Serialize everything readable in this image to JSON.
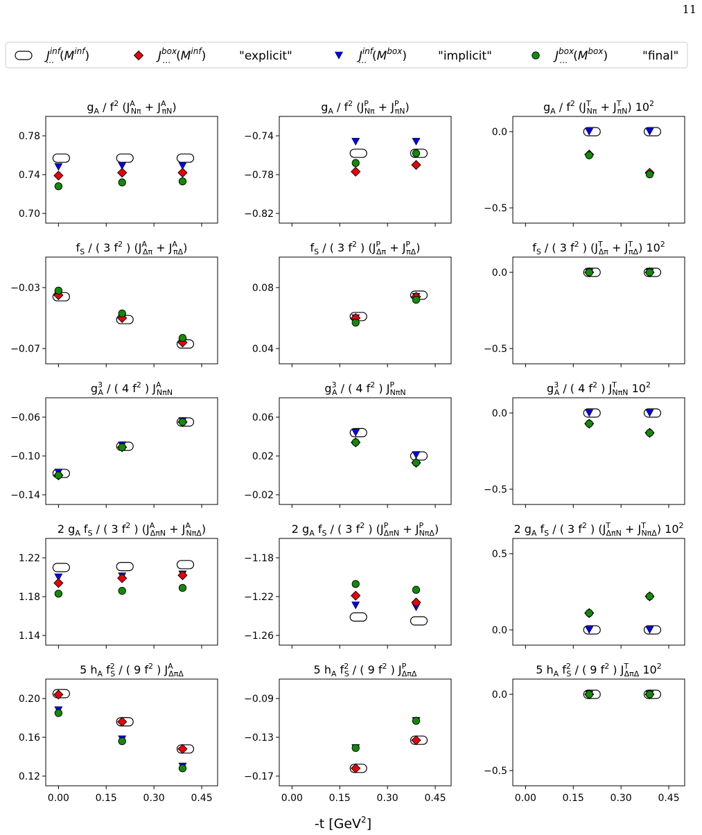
{
  "page_number": "11",
  "xlabel": "-t [GeV²]",
  "legend": [
    {
      "key": "inf_inf",
      "text": "J…inf(Minf)",
      "quote": "",
      "marker": "pill",
      "color": "#ffffff"
    },
    {
      "key": "box_inf",
      "text": "J…box(Minf)",
      "quote": "\"explicit\"",
      "marker": "diamond",
      "color": "#e8000b"
    },
    {
      "key": "inf_box",
      "text": "J…inf(Mbox)",
      "quote": "\"implicit\"",
      "marker": "triangle-down",
      "color": "#0000ee"
    },
    {
      "key": "box_box",
      "text": "J…box(Mbox)",
      "quote": "\"final\"",
      "marker": "circle",
      "color": "#138a07"
    }
  ],
  "chart_data": [
    {
      "type": "scatter",
      "title": "gA / f2 (JA_Nπ + JA_πN)",
      "xlim": [
        -0.04,
        0.5
      ],
      "ylim": [
        0.69,
        0.8
      ],
      "yticks": [
        "0.70",
        "0.74",
        "0.78"
      ],
      "yticks_num": [
        0.7,
        0.74,
        0.78
      ],
      "xticks": [
        "0.00",
        "0.15",
        "0.30",
        "0.45"
      ],
      "x": [
        0,
        0.2,
        0.39
      ],
      "series": [
        {
          "name": "Jinf(Minf)",
          "values": [
            0.757,
            0.757,
            0.757
          ]
        },
        {
          "name": "Jbox(Minf) explicit",
          "values": [
            0.739,
            0.742,
            0.742
          ]
        },
        {
          "name": "Jinf(Mbox) implicit",
          "values": [
            0.748,
            0.749,
            0.749
          ]
        },
        {
          "name": "Jbox(Mbox) final",
          "values": [
            0.728,
            0.732,
            0.733
          ]
        }
      ]
    },
    {
      "type": "scatter",
      "title": "gA / f2 (JP_Nπ + JP_πN)",
      "xlim": [
        -0.04,
        0.5
      ],
      "ylim": [
        -0.83,
        -0.72
      ],
      "yticks": [
        "−0.82",
        "−0.78",
        "−0.74"
      ],
      "yticks_num": [
        -0.82,
        -0.78,
        -0.74
      ],
      "xticks": [
        "0.00",
        "0.15",
        "0.30",
        "0.45"
      ],
      "x": [
        0.2,
        0.39
      ],
      "series": [
        {
          "name": "Jinf(Minf)",
          "values": [
            -0.758,
            -0.758
          ]
        },
        {
          "name": "Jbox(Minf) explicit",
          "values": [
            -0.777,
            -0.77
          ]
        },
        {
          "name": "Jinf(Mbox) implicit",
          "values": [
            -0.746,
            -0.746
          ]
        },
        {
          "name": "Jbox(Mbox) final",
          "values": [
            -0.768,
            -0.758
          ]
        }
      ]
    },
    {
      "type": "scatter",
      "title": "gA / f2 (JT_Nπ + JT_πN) 102",
      "xlim": [
        -0.04,
        0.5
      ],
      "ylim": [
        -0.6,
        0.1
      ],
      "yticks": [
        "−0.5",
        "0.0"
      ],
      "yticks_num": [
        -0.5,
        0.0
      ],
      "xticks": [
        "0.00",
        "0.15",
        "0.30",
        "0.45"
      ],
      "x": [
        0.2,
        0.39
      ],
      "series": [
        {
          "name": "Jinf(Minf)",
          "values": [
            0.0,
            0.0
          ]
        },
        {
          "name": "Jbox(Minf) explicit",
          "values": [
            -0.15,
            -0.27
          ]
        },
        {
          "name": "Jinf(Mbox) implicit",
          "values": [
            0.0,
            0.0
          ]
        },
        {
          "name": "Jbox(Mbox) final",
          "values": [
            -0.155,
            -0.28
          ]
        }
      ]
    },
    {
      "type": "scatter",
      "title": "fS / (3 f2) (JA_Δπ + JA_πΔ)",
      "xlim": [
        -0.04,
        0.5
      ],
      "ylim": [
        -0.08,
        -0.01
      ],
      "yticks": [
        "−0.07",
        "−0.03"
      ],
      "yticks_num": [
        -0.07,
        -0.03
      ],
      "xticks": [
        "0.00",
        "0.15",
        "0.30",
        "0.45"
      ],
      "x": [
        0,
        0.2,
        0.39
      ],
      "series": [
        {
          "name": "Jinf(Minf)",
          "values": [
            -0.036,
            -0.051,
            -0.067
          ]
        },
        {
          "name": "Jbox(Minf) explicit",
          "values": [
            -0.035,
            -0.05,
            -0.066
          ]
        },
        {
          "name": "Jinf(Mbox) implicit",
          "values": [
            -0.035,
            -0.05,
            -0.066
          ]
        },
        {
          "name": "Jbox(Mbox) final",
          "values": [
            -0.032,
            -0.047,
            -0.063
          ]
        }
      ]
    },
    {
      "type": "scatter",
      "title": "fS / (3 f2) (JP_Δπ + JP_πΔ)",
      "xlim": [
        -0.04,
        0.5
      ],
      "ylim": [
        0.03,
        0.1
      ],
      "yticks": [
        "0.04",
        "0.08"
      ],
      "yticks_num": [
        0.04,
        0.08
      ],
      "xticks": [
        "0.00",
        "0.15",
        "0.30",
        "0.45"
      ],
      "x": [
        0.2,
        0.39
      ],
      "series": [
        {
          "name": "Jinf(Minf)",
          "values": [
            0.061,
            0.075
          ]
        },
        {
          "name": "Jbox(Minf) explicit",
          "values": [
            0.06,
            0.074
          ]
        },
        {
          "name": "Jinf(Mbox) implicit",
          "values": [
            0.06,
            0.074
          ]
        },
        {
          "name": "Jbox(Mbox) final",
          "values": [
            0.057,
            0.072
          ]
        }
      ]
    },
    {
      "type": "scatter",
      "title": "fS / (3 f2) (JT_Δπ + JT_πΔ) 102",
      "xlim": [
        -0.04,
        0.5
      ],
      "ylim": [
        -0.6,
        0.1
      ],
      "yticks": [
        "−0.5",
        "0.0"
      ],
      "yticks_num": [
        -0.5,
        0.0
      ],
      "xticks": [
        "0.00",
        "0.15",
        "0.30",
        "0.45"
      ],
      "x": [
        0.2,
        0.39
      ],
      "series": [
        {
          "name": "Jinf(Minf)",
          "values": [
            0.0,
            0.0
          ]
        },
        {
          "name": "Jbox(Minf) explicit",
          "values": [
            0.0,
            0.0
          ]
        },
        {
          "name": "Jinf(Mbox) implicit",
          "values": [
            0.0,
            0.0
          ]
        },
        {
          "name": "Jbox(Mbox) final",
          "values": [
            0.0,
            0.0
          ]
        }
      ]
    },
    {
      "type": "scatter",
      "title": "gA3 / (4 f2) JA_NπN",
      "xlim": [
        -0.04,
        0.5
      ],
      "ylim": [
        -0.15,
        -0.04
      ],
      "yticks": [
        "−0.14",
        "−0.10",
        "−0.06"
      ],
      "yticks_num": [
        -0.14,
        -0.1,
        -0.06
      ],
      "xticks": [
        "0.00",
        "0.15",
        "0.30",
        "0.45"
      ],
      "x": [
        0,
        0.2,
        0.39
      ],
      "series": [
        {
          "name": "Jinf(Minf)",
          "values": [
            -0.118,
            -0.09,
            -0.065
          ]
        },
        {
          "name": "Jbox(Minf) explicit",
          "values": [
            -0.12,
            -0.091,
            -0.065
          ]
        },
        {
          "name": "Jinf(Mbox) implicit",
          "values": [
            -0.117,
            -0.089,
            -0.064
          ]
        },
        {
          "name": "Jbox(Mbox) final",
          "values": [
            -0.12,
            -0.091,
            -0.065
          ]
        }
      ]
    },
    {
      "type": "scatter",
      "title": "gA3 / (4 f2) JP_NπN",
      "xlim": [
        -0.04,
        0.5
      ],
      "ylim": [
        -0.03,
        0.08
      ],
      "yticks": [
        "−0.02",
        "0.02",
        "0.06"
      ],
      "yticks_num": [
        -0.02,
        0.02,
        0.06
      ],
      "xticks": [
        "0.00",
        "0.15",
        "0.30",
        "0.45"
      ],
      "x": [
        0.2,
        0.39
      ],
      "series": [
        {
          "name": "Jinf(Minf)",
          "values": [
            0.044,
            0.02
          ]
        },
        {
          "name": "Jbox(Minf) explicit",
          "values": [
            0.034,
            0.013
          ]
        },
        {
          "name": "Jinf(Mbox) implicit",
          "values": [
            0.044,
            0.021
          ]
        },
        {
          "name": "Jbox(Mbox) final",
          "values": [
            0.034,
            0.013
          ]
        }
      ]
    },
    {
      "type": "scatter",
      "title": "gA3 / (4 f2) JT_NπN 102",
      "xlim": [
        -0.04,
        0.5
      ],
      "ylim": [
        -0.6,
        0.1
      ],
      "yticks": [
        "−0.5",
        "0.0"
      ],
      "yticks_num": [
        -0.5,
        0.0
      ],
      "xticks": [
        "0.00",
        "0.15",
        "0.30",
        "0.45"
      ],
      "x": [
        0.2,
        0.39
      ],
      "series": [
        {
          "name": "Jinf(Minf)",
          "values": [
            0.0,
            0.0
          ]
        },
        {
          "name": "Jbox(Minf) explicit",
          "values": [
            -0.07,
            -0.13
          ]
        },
        {
          "name": "Jinf(Mbox) implicit",
          "values": [
            0.0,
            0.0
          ]
        },
        {
          "name": "Jbox(Mbox) final",
          "values": [
            -0.07,
            -0.13
          ]
        }
      ]
    },
    {
      "type": "scatter",
      "title": "2 gA fS / (3 f2) (JA_ΔπN + JA_NπΔ)",
      "xlim": [
        -0.04,
        0.5
      ],
      "ylim": [
        1.13,
        1.24
      ],
      "yticks": [
        "1.14",
        "1.18",
        "1.22"
      ],
      "yticks_num": [
        1.14,
        1.18,
        1.22
      ],
      "xticks": [
        "0.00",
        "0.15",
        "0.30",
        "0.45"
      ],
      "x": [
        0,
        0.2,
        0.39
      ],
      "series": [
        {
          "name": "Jinf(Minf)",
          "values": [
            1.21,
            1.211,
            1.213
          ]
        },
        {
          "name": "Jbox(Minf) explicit",
          "values": [
            1.194,
            1.199,
            1.202
          ]
        },
        {
          "name": "Jinf(Mbox) implicit",
          "values": [
            1.2,
            1.201,
            1.203
          ]
        },
        {
          "name": "Jbox(Mbox) final",
          "values": [
            1.183,
            1.186,
            1.189
          ]
        }
      ]
    },
    {
      "type": "scatter",
      "title": "2 gA fS / (3 f2) (JP_ΔπN + JP_NπΔ)",
      "xlim": [
        -0.04,
        0.5
      ],
      "ylim": [
        -1.27,
        -1.16
      ],
      "yticks": [
        "−1.26",
        "−1.22",
        "−1.18"
      ],
      "yticks_num": [
        -1.26,
        -1.22,
        -1.18
      ],
      "xticks": [
        "0.00",
        "0.15",
        "0.30",
        "0.45"
      ],
      "x": [
        0.2,
        0.39
      ],
      "series": [
        {
          "name": "Jinf(Minf)",
          "values": [
            -1.241,
            -1.245
          ]
        },
        {
          "name": "Jbox(Minf) explicit",
          "values": [
            -1.219,
            -1.226
          ]
        },
        {
          "name": "Jinf(Mbox) implicit",
          "values": [
            -1.229,
            -1.231
          ]
        },
        {
          "name": "Jbox(Mbox) final",
          "values": [
            -1.207,
            -1.213
          ]
        }
      ]
    },
    {
      "type": "scatter",
      "title": "2 gA fS / (3 f2) (JT_ΔπN + JT_NπΔ) 102",
      "xlim": [
        -0.04,
        0.5
      ],
      "ylim": [
        -0.1,
        0.6
      ],
      "yticks": [
        "0.0",
        "0.5"
      ],
      "yticks_num": [
        0.0,
        0.5
      ],
      "xticks": [
        "0.00",
        "0.15",
        "0.30",
        "0.45"
      ],
      "x": [
        0.2,
        0.39
      ],
      "series": [
        {
          "name": "Jinf(Minf)",
          "values": [
            0.0,
            0.0
          ]
        },
        {
          "name": "Jbox(Minf) explicit",
          "values": [
            0.11,
            0.22
          ]
        },
        {
          "name": "Jinf(Mbox) implicit",
          "values": [
            0.0,
            0.0
          ]
        },
        {
          "name": "Jbox(Mbox) final",
          "values": [
            0.11,
            0.22
          ]
        }
      ]
    },
    {
      "type": "scatter",
      "title": "5 hA fS2 / (9 f2) JA_ΔπΔ",
      "xlim": [
        -0.04,
        0.5
      ],
      "ylim": [
        0.11,
        0.22
      ],
      "yticks": [
        "0.12",
        "0.16",
        "0.20"
      ],
      "yticks_num": [
        0.12,
        0.16,
        0.2
      ],
      "xticks": [
        "0.00",
        "0.15",
        "0.30",
        "0.45"
      ],
      "x": [
        0,
        0.2,
        0.39
      ],
      "series": [
        {
          "name": "Jinf(Minf)",
          "values": [
            0.205,
            0.176,
            0.148
          ]
        },
        {
          "name": "Jbox(Minf) explicit",
          "values": [
            0.204,
            0.176,
            0.148
          ]
        },
        {
          "name": "Jinf(Mbox) implicit",
          "values": [
            0.188,
            0.158,
            0.13
          ]
        },
        {
          "name": "Jbox(Mbox) final",
          "values": [
            0.185,
            0.156,
            0.128
          ]
        }
      ]
    },
    {
      "type": "scatter",
      "title": "5 hA fS2 / (9 f2) JP_ΔπΔ",
      "xlim": [
        -0.04,
        0.5
      ],
      "ylim": [
        -0.18,
        -0.07
      ],
      "yticks": [
        "−0.17",
        "−0.13",
        "−0.09"
      ],
      "yticks_num": [
        -0.17,
        -0.13,
        -0.09
      ],
      "xticks": [
        "0.00",
        "0.15",
        "0.30",
        "0.45"
      ],
      "x": [
        0.2,
        0.39
      ],
      "series": [
        {
          "name": "Jinf(Minf)",
          "values": [
            -0.162,
            -0.133
          ]
        },
        {
          "name": "Jbox(Minf) explicit",
          "values": [
            -0.162,
            -0.133
          ]
        },
        {
          "name": "Jinf(Mbox) implicit",
          "values": [
            -0.141,
            -0.113
          ]
        },
        {
          "name": "Jbox(Mbox) final",
          "values": [
            -0.141,
            -0.113
          ]
        }
      ]
    },
    {
      "type": "scatter",
      "title": "5 hA fS2 / (9 f2) JT_ΔπΔ 102",
      "xlim": [
        -0.04,
        0.5
      ],
      "ylim": [
        -0.6,
        0.1
      ],
      "yticks": [
        "−0.5",
        "0.0"
      ],
      "yticks_num": [
        -0.5,
        0.0
      ],
      "xticks": [
        "0.00",
        "0.15",
        "0.30",
        "0.45"
      ],
      "x": [
        0.2,
        0.39
      ],
      "series": [
        {
          "name": "Jinf(Minf)",
          "values": [
            0.0,
            0.0
          ]
        },
        {
          "name": "Jbox(Minf) explicit",
          "values": [
            0.0,
            0.0
          ]
        },
        {
          "name": "Jinf(Mbox) implicit",
          "values": [
            0.0,
            0.0
          ]
        },
        {
          "name": "Jbox(Mbox) final",
          "values": [
            0.0,
            0.0
          ]
        }
      ]
    }
  ]
}
